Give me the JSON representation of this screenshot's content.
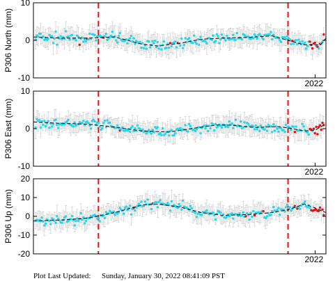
{
  "footer": {
    "label": "Plot Last Updated:",
    "value": "Sunday, January 30, 2022 08:41:09 PST"
  },
  "colors": {
    "background": "#ffffff",
    "axes": "#000000",
    "error_bar": "#cccccc",
    "data_point": "#22d8f0",
    "recent_point": "#e81010",
    "event_line": "#e81010",
    "trend_line": "#000000"
  },
  "chart_data": [
    {
      "type": "scatter",
      "ylabel": "P306 North (mm)",
      "ylim": [
        -10,
        10
      ],
      "yticks": [
        -10,
        0,
        10
      ],
      "x_tick_label": "2022",
      "event_lines": [
        2018.0,
        2021.5
      ],
      "x_range": [
        2016.8,
        2022.2
      ],
      "trend": [
        [
          2016.8,
          0.9
        ],
        [
          2017.3,
          0.6
        ],
        [
          2017.8,
          0.6
        ],
        [
          2018.3,
          0.9
        ],
        [
          2018.8,
          -1.0
        ],
        [
          2019.1,
          -1.5
        ],
        [
          2019.5,
          -0.8
        ],
        [
          2019.9,
          0.3
        ],
        [
          2020.3,
          0.6
        ],
        [
          2020.8,
          0.8
        ],
        [
          2021.2,
          1.2
        ],
        [
          2021.5,
          0.0
        ],
        [
          2021.8,
          -1.2
        ],
        [
          2022.1,
          -1.2
        ],
        [
          2022.2,
          0.6
        ]
      ]
    },
    {
      "type": "scatter",
      "ylabel": "P306 East (mm)",
      "ylim": [
        -10,
        10
      ],
      "yticks": [
        -10,
        0,
        10
      ],
      "x_tick_label": "2022",
      "event_lines": [
        2018.0,
        2021.5
      ],
      "x_range": [
        2016.8,
        2022.2
      ],
      "trend": [
        [
          2016.8,
          1.8
        ],
        [
          2017.3,
          1.4
        ],
        [
          2017.8,
          1.2
        ],
        [
          2018.3,
          0.4
        ],
        [
          2018.8,
          -0.6
        ],
        [
          2019.3,
          -0.9
        ],
        [
          2019.8,
          0.2
        ],
        [
          2020.2,
          1.0
        ],
        [
          2020.5,
          0.9
        ],
        [
          2020.9,
          0.3
        ],
        [
          2021.3,
          0.6
        ],
        [
          2021.5,
          0.2
        ],
        [
          2021.8,
          -0.6
        ],
        [
          2022.0,
          -0.4
        ],
        [
          2022.2,
          1.3
        ]
      ]
    },
    {
      "type": "scatter",
      "ylabel": "P306 Up (mm)",
      "ylim": [
        -20,
        20
      ],
      "yticks": [
        -20,
        -10,
        0,
        10,
        20
      ],
      "x_tick_label": "2022",
      "event_lines": [
        2018.0,
        2021.5
      ],
      "x_range": [
        2016.8,
        2022.2
      ],
      "trend": [
        [
          2016.8,
          -2.5
        ],
        [
          2017.3,
          -2.0
        ],
        [
          2017.8,
          -1.0
        ],
        [
          2018.3,
          2.0
        ],
        [
          2018.8,
          6.0
        ],
        [
          2019.1,
          6.5
        ],
        [
          2019.5,
          5.0
        ],
        [
          2019.9,
          2.0
        ],
        [
          2020.3,
          0.5
        ],
        [
          2020.8,
          1.0
        ],
        [
          2021.2,
          2.0
        ],
        [
          2021.5,
          3.5
        ],
        [
          2021.8,
          6.5
        ],
        [
          2022.0,
          4.5
        ],
        [
          2022.2,
          2.0
        ]
      ]
    }
  ]
}
